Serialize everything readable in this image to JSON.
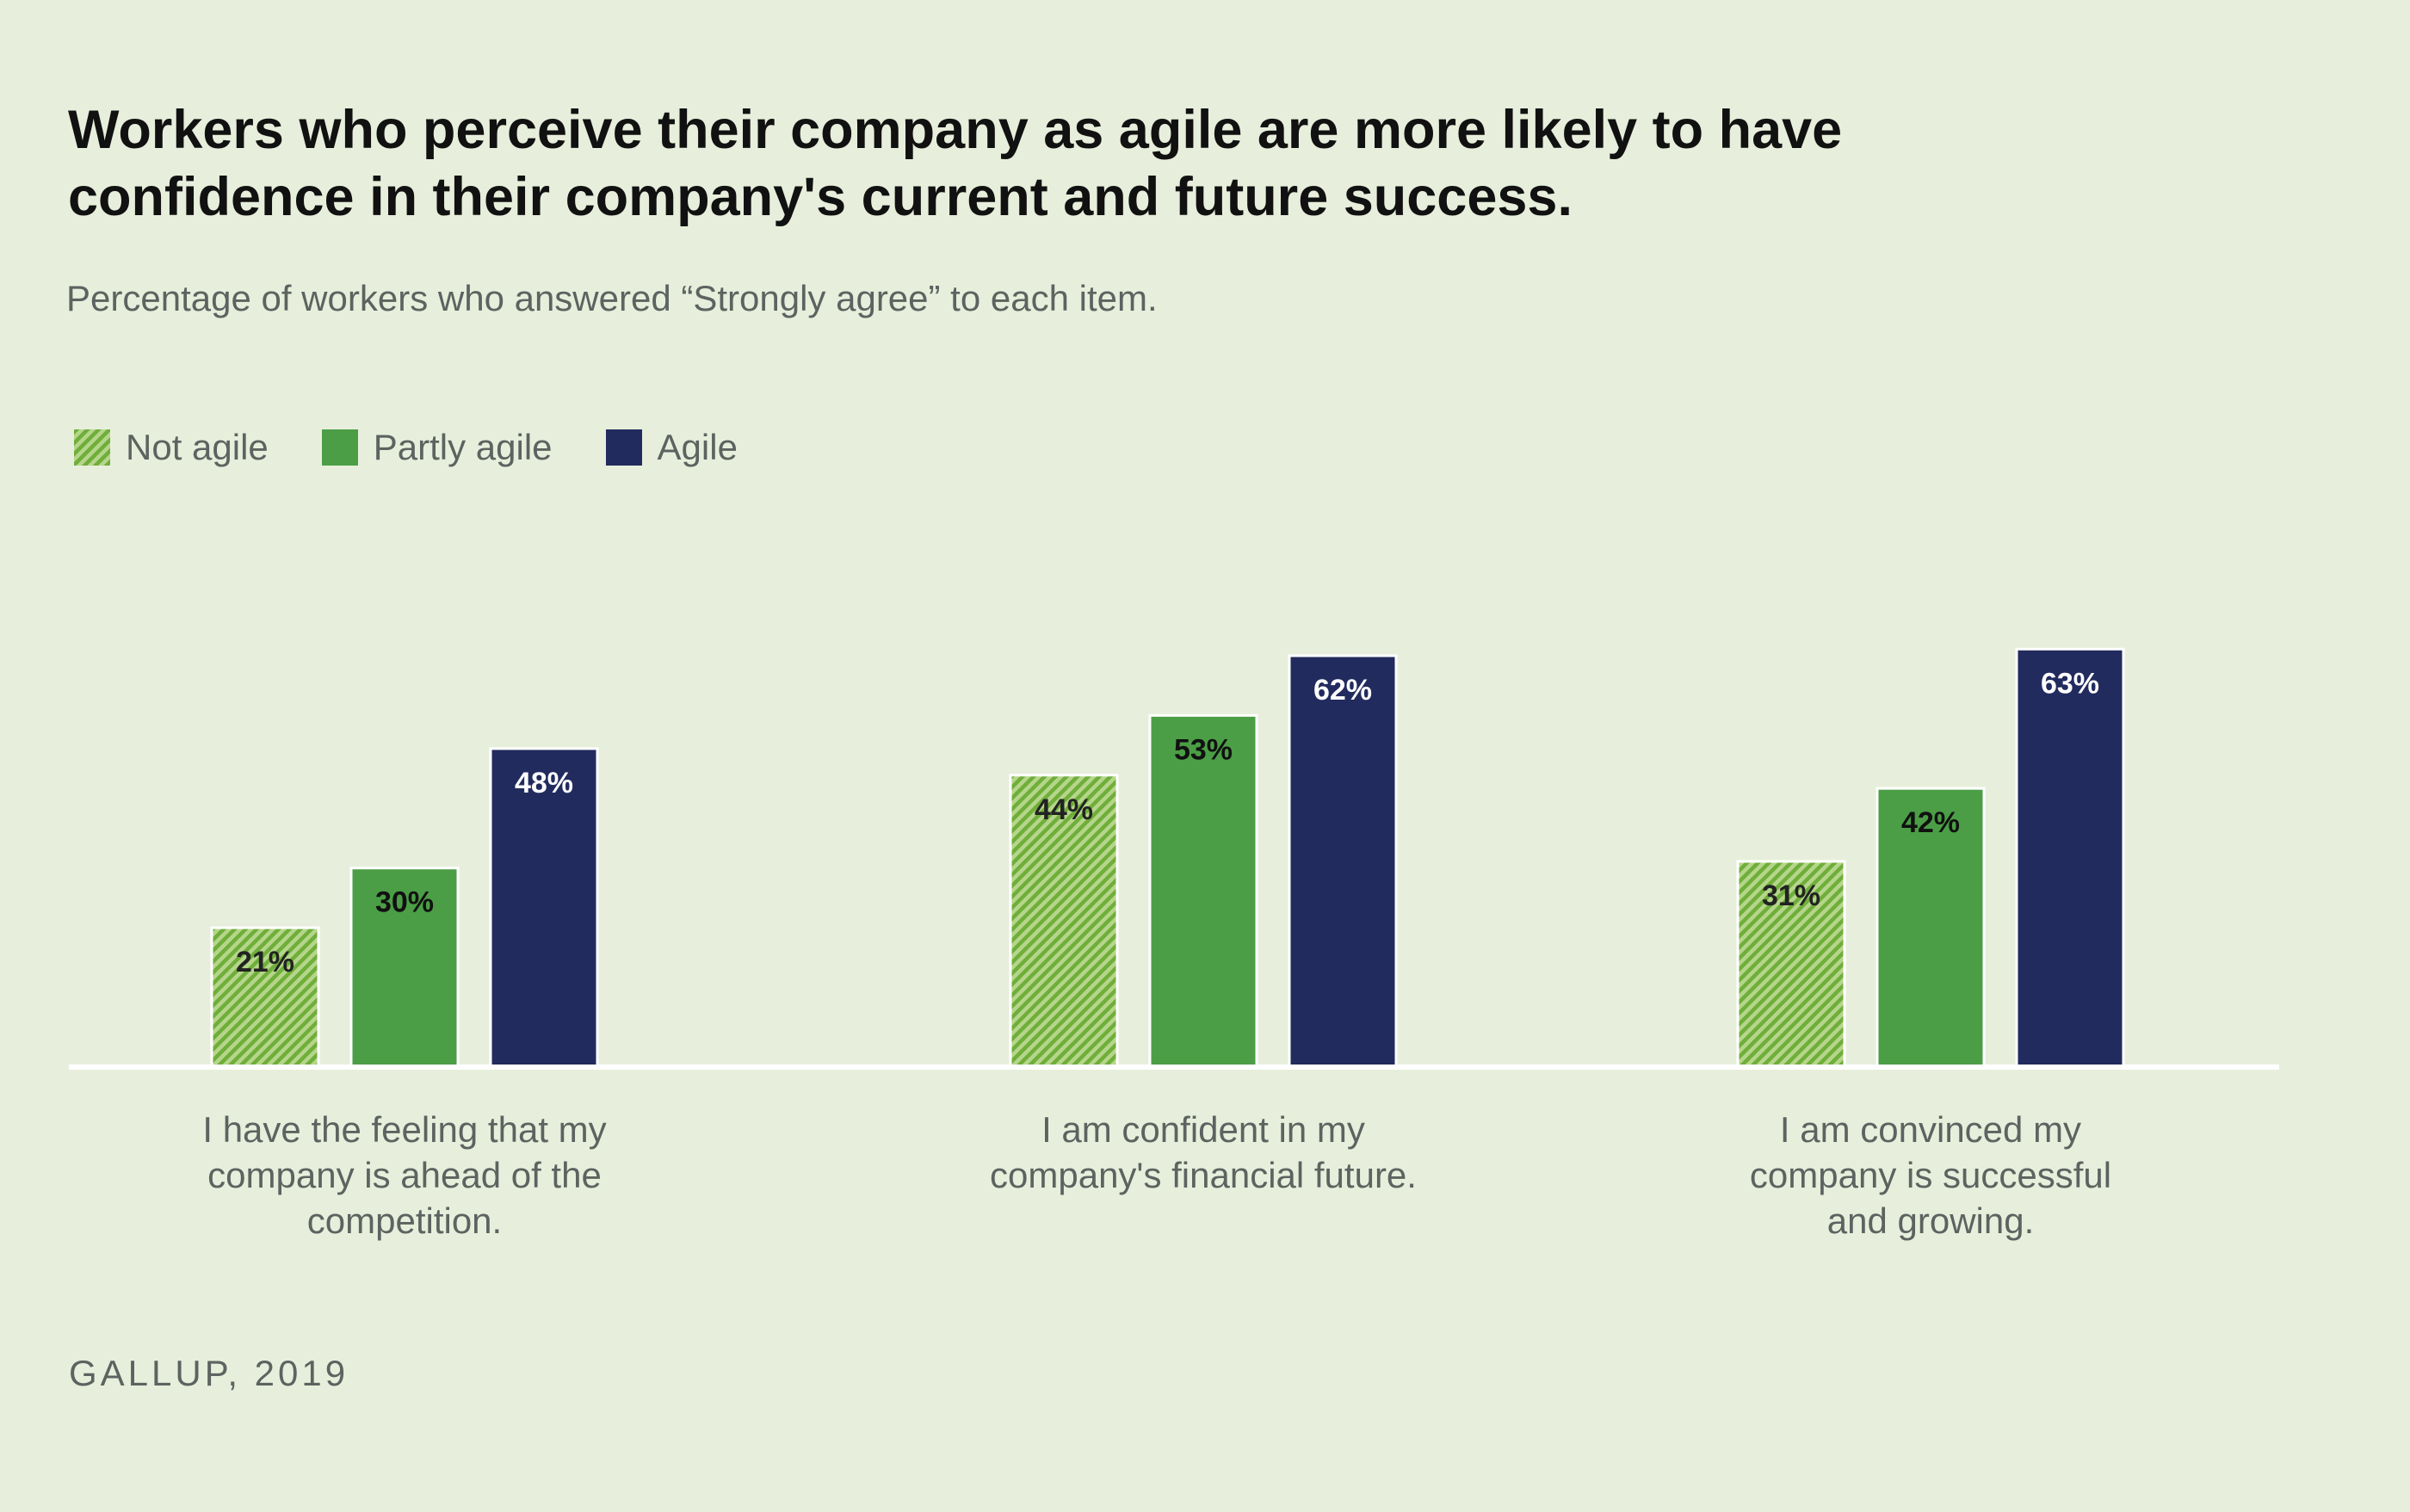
{
  "header": {
    "title": "Workers who perceive their company as agile are more likely to have confidence in their company's current and future success.",
    "subtitle": "Percentage of workers who answered “Strongly agree” to each item."
  },
  "legend": {
    "items": [
      {
        "label": "Not agile",
        "color": "#7cb342",
        "pattern": "hatched"
      },
      {
        "label": "Partly agile",
        "color": "#4b9e46",
        "pattern": "solid"
      },
      {
        "label": "Agile",
        "color": "#222b5e",
        "pattern": "solid"
      }
    ]
  },
  "chart_data": {
    "type": "bar",
    "title": "Workers who perceive their company as agile are more likely to have confidence in their company's current and future success.",
    "subtitle": "Percentage of workers who answered “Strongly agree” to each item.",
    "xlabel": "",
    "ylabel": "",
    "ylim": [
      0,
      100
    ],
    "grid": false,
    "legend_position": "top-left",
    "categories": [
      [
        "I have the feeling that my",
        "company is ahead of the",
        "competition."
      ],
      [
        "I am confident in my",
        "company's financial future."
      ],
      [
        "I am convinced my",
        "company is successful",
        "and growing."
      ]
    ],
    "series": [
      {
        "name": "Not agile",
        "values": [
          21,
          44,
          31
        ],
        "labels": [
          "21%",
          "44%",
          "31%"
        ],
        "color": "#7cb342",
        "pattern": "hatched"
      },
      {
        "name": "Partly agile",
        "values": [
          30,
          53,
          42
        ],
        "labels": [
          "30%",
          "53%",
          "42%"
        ],
        "color": "#4b9e46",
        "pattern": "solid"
      },
      {
        "name": "Agile",
        "values": [
          48,
          62,
          63
        ],
        "labels": [
          "48%",
          "62%",
          "63%"
        ],
        "color": "#222b5e",
        "pattern": "solid"
      }
    ]
  },
  "footer": {
    "source": "GALLUP, 2019"
  }
}
